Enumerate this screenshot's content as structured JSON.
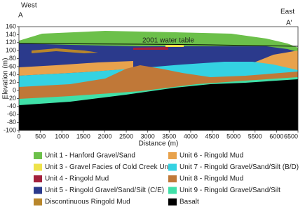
{
  "header": {
    "west": "West",
    "a_left": "A",
    "east": "East",
    "a_right": "A'"
  },
  "axes": {
    "y_title": "Elevation (m)",
    "x_title": "Distance (m)",
    "yticks": [
      160,
      140,
      120,
      100,
      80,
      60,
      40,
      20,
      0,
      -20,
      -40,
      -60,
      -80,
      -100
    ],
    "xticks": [
      0,
      500,
      1000,
      1500,
      2000,
      2500,
      3000,
      3500,
      4000,
      4500,
      5000,
      5500,
      6000,
      6500
    ]
  },
  "annotation": "2001 water table",
  "legend": [
    {
      "label": "Unit 1 - Hanford Gravel/Sand",
      "color": "#6cc04a"
    },
    {
      "label": "Unit 3 - Gravel Facies of Cold Creek Unit",
      "color": "#eee24a"
    },
    {
      "label": "Unit 4 - Ringold Mud",
      "color": "#a3203c"
    },
    {
      "label": "Unit 5 - Ringold Gravel/Sand/Silt (C/E)",
      "color": "#2b3a8c"
    },
    {
      "label": "Discontinuous Ringold Mud",
      "color": "#b8862b"
    },
    {
      "label": "Unit 6 - Ringold Mud",
      "color": "#e8a24c"
    },
    {
      "label": "Unit 7 - Ringold Gravel/Sand/Silt (B/D)",
      "color": "#34d2e2"
    },
    {
      "label": "Unit 8 - Ringold Mud",
      "color": "#c07838"
    },
    {
      "label": "Unit 9 - Ringold Gravel/Sand/Silt",
      "color": "#40e0a8"
    },
    {
      "label": "Basalt",
      "color": "#000000"
    }
  ]
}
